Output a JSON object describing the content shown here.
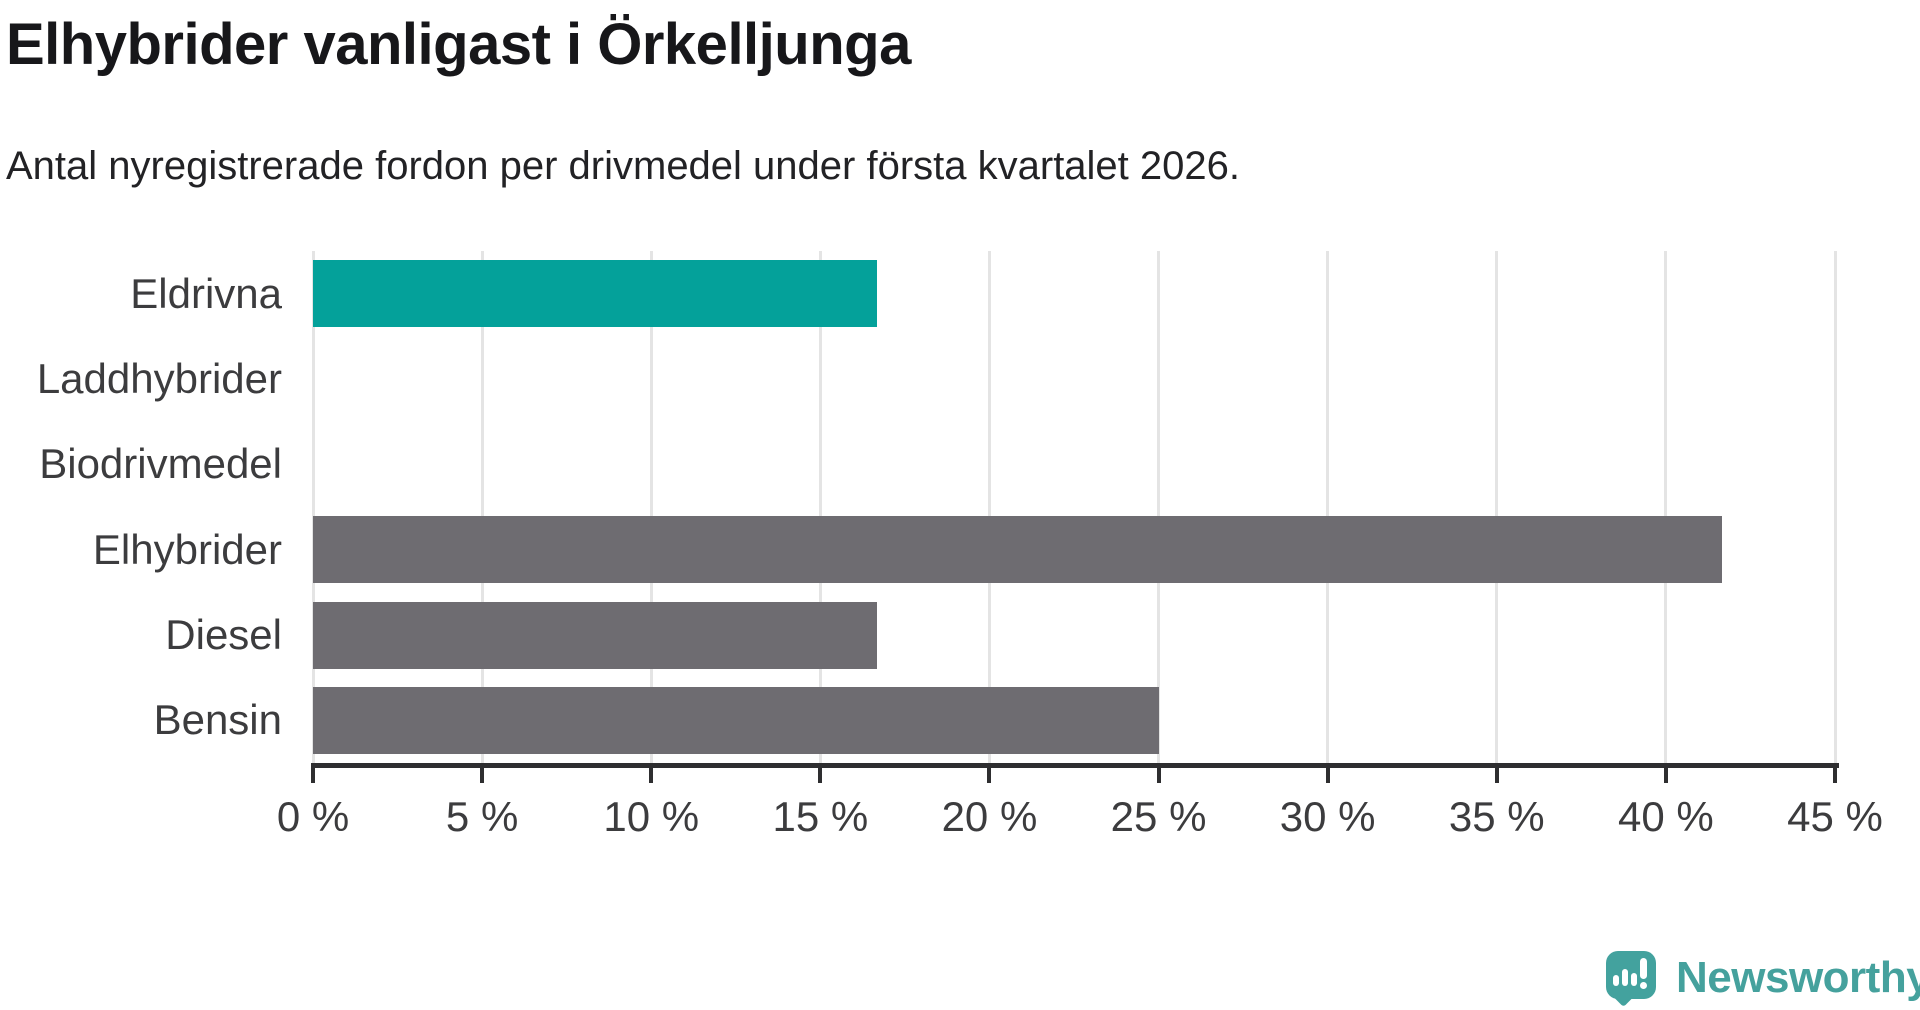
{
  "header": {
    "title": "Elhybrider vanligast i Örkelljunga",
    "subtitle": "Antal nyregistrerade fordon per drivmedel under första kvartalet 2026."
  },
  "chart_data": {
    "type": "bar",
    "orientation": "horizontal",
    "title": "Elhybrider vanligast i Örkelljunga",
    "subtitle": "Antal nyregistrerade fordon per drivmedel under första kvartalet 2026.",
    "categories": [
      "Eldrivna",
      "Laddhybrider",
      "Biodrivmedel",
      "Elhybrider",
      "Diesel",
      "Bensin"
    ],
    "values": [
      16.67,
      0,
      0,
      41.67,
      16.67,
      25
    ],
    "unit": "%",
    "xlim": [
      0,
      45
    ],
    "x_ticks": [
      0,
      5,
      10,
      15,
      20,
      25,
      30,
      35,
      40,
      45
    ],
    "x_tick_labels": [
      "0 %",
      "5 %",
      "10 %",
      "15 %",
      "20 %",
      "25 %",
      "30 %",
      "35 %",
      "40 %",
      "45 %"
    ],
    "grid": true,
    "legend": "none",
    "highlight_category": "Eldrivna",
    "colors": {
      "highlight_bar": "#04a19a",
      "default_bar": "#6e6c71",
      "gridline": "#e4e4e4",
      "axis": "#2e2e30",
      "tick_label": "#3c3c3e",
      "category_label": "#3c3c3e"
    }
  },
  "branding": {
    "logo_text": "Newsworthy",
    "logo_color": "#45a19d",
    "logo_mark_color": "#43a29e",
    "logo_icon": "speech-bubble-bar-chart-exclamation-icon"
  }
}
